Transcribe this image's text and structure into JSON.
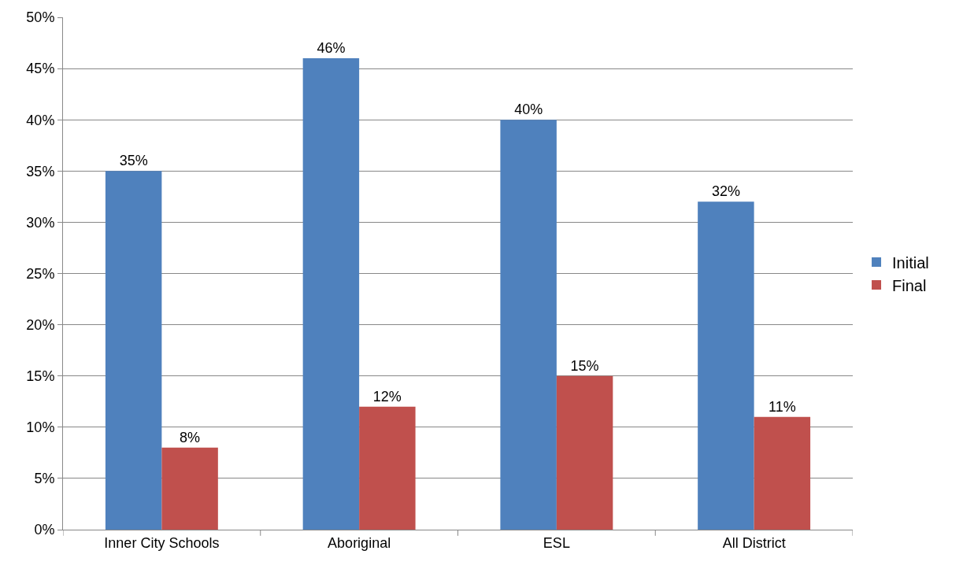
{
  "chart_data": {
    "type": "bar",
    "categories": [
      "Inner City Schools",
      "Aboriginal",
      "ESL",
      "All District"
    ],
    "series": [
      {
        "name": "Initial",
        "color": "#4f81bd",
        "values": [
          35,
          46,
          40,
          32
        ],
        "value_labels": [
          "35%",
          "46%",
          "40%",
          "32%"
        ]
      },
      {
        "name": "Final",
        "color": "#c0504d",
        "values": [
          8,
          12,
          15,
          11
        ],
        "value_labels": [
          "8%",
          "12%",
          "15%",
          "11%"
        ]
      }
    ],
    "ylim": [
      0,
      50
    ],
    "yticks": [
      {
        "value": 0,
        "label": "0%"
      },
      {
        "value": 5,
        "label": "5%"
      },
      {
        "value": 10,
        "label": "10%"
      },
      {
        "value": 15,
        "label": "15%"
      },
      {
        "value": 20,
        "label": "20%"
      },
      {
        "value": 25,
        "label": "25%"
      },
      {
        "value": 30,
        "label": "30%"
      },
      {
        "value": 35,
        "label": "35%"
      },
      {
        "value": 40,
        "label": "40%"
      },
      {
        "value": 45,
        "label": "45%"
      },
      {
        "value": 50,
        "label": "50%"
      }
    ],
    "grid": "y",
    "legend": "right"
  }
}
